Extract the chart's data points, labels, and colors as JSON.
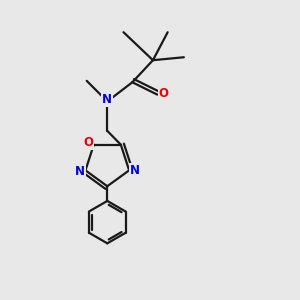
{
  "bg_color": "#e8e8e8",
  "bond_color": "#1a1a1a",
  "N_color": "#0000ee",
  "O_color": "#ee0000",
  "figsize": [
    3.0,
    3.0
  ],
  "dpi": 100,
  "lw": 1.6,
  "label_fs": 8.5,
  "xlim": [
    0,
    10
  ],
  "ylim": [
    0,
    10
  ]
}
